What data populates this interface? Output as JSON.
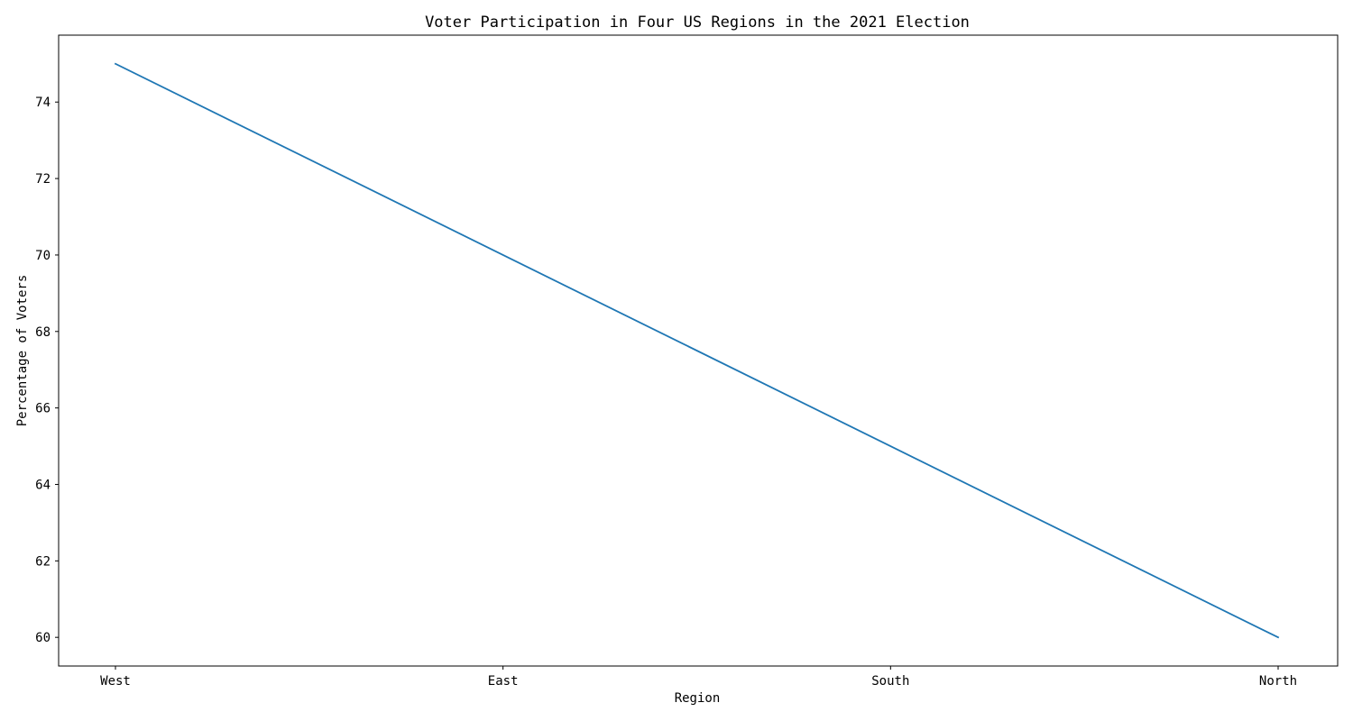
{
  "chart_data": {
    "type": "line",
    "title": "Voter Participation in Four US Regions in the 2021 Election",
    "xlabel": "Region",
    "ylabel": "Percentage of Voters",
    "categories": [
      "West",
      "East",
      "South",
      "North"
    ],
    "series": [
      {
        "values": [
          75,
          70,
          65,
          60
        ]
      }
    ],
    "ylim": [
      59.25,
      75.75
    ],
    "yticks": [
      60,
      62,
      64,
      66,
      68,
      70,
      72,
      74
    ],
    "grid": false,
    "legend": "none",
    "colors": {
      "line": "#1f77b4",
      "axes": "#000000"
    }
  }
}
